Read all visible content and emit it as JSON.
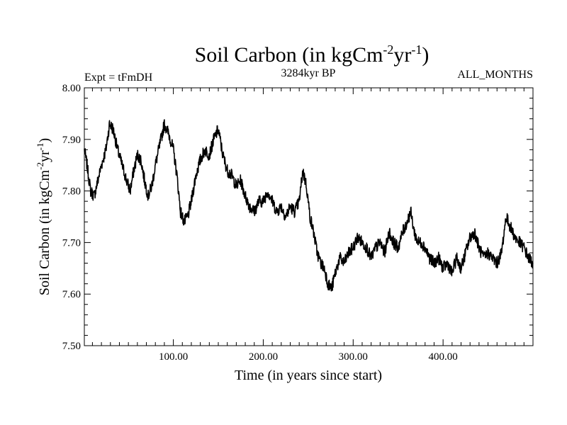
{
  "chart_data": {
    "type": "line",
    "title": "Soil Carbon",
    "title_units": "(in kgCm",
    "title_sup1": "-2",
    "title_mid": "yr",
    "title_sup2": "-1",
    "title_close": ")",
    "subtitle_left": "Expt = tFmDH",
    "subtitle_center": "3284kyr BP",
    "subtitle_right": "ALL_MONTHS",
    "xlabel": "Time (in years since start)",
    "ylabel": "Soil Carbon",
    "ylabel_units": "(in kgCm",
    "ylabel_sup1": "-2",
    "ylabel_mid": "yr",
    "ylabel_sup2": "-1",
    "ylabel_close": ")",
    "xlim": [
      1,
      500
    ],
    "ylim": [
      7.5,
      8.0
    ],
    "xticks": [
      100,
      200,
      300,
      400
    ],
    "xtick_labels": [
      "100.00",
      "200.00",
      "300.00",
      "400.00"
    ],
    "yticks": [
      7.5,
      7.6,
      7.7,
      7.8,
      7.9,
      8.0
    ],
    "ytick_labels": [
      "7.50",
      "7.60",
      "7.70",
      "7.80",
      "7.90",
      "8.00"
    ],
    "line_color": "#000000",
    "series": [
      {
        "name": "Soil Carbon",
        "noise_amplitude": 0.012,
        "x": [
          1,
          4,
          8,
          12,
          16,
          20,
          25,
          29,
          33,
          38,
          43,
          48,
          52,
          56,
          60,
          64,
          68,
          72,
          76,
          80,
          85,
          90,
          95,
          100,
          104,
          108,
          112,
          116,
          120,
          125,
          130,
          135,
          140,
          145,
          150,
          155,
          160,
          165,
          170,
          175,
          180,
          185,
          190,
          195,
          200,
          205,
          210,
          215,
          220,
          225,
          230,
          235,
          240,
          244,
          248,
          252,
          256,
          260,
          264,
          268,
          272,
          276,
          280,
          285,
          290,
          295,
          300,
          305,
          310,
          315,
          320,
          325,
          330,
          335,
          340,
          345,
          350,
          355,
          360,
          364,
          368,
          372,
          376,
          380,
          385,
          390,
          395,
          400,
          405,
          410,
          415,
          420,
          425,
          430,
          435,
          440,
          445,
          450,
          455,
          460,
          465,
          470,
          475,
          480,
          485,
          490,
          495,
          500
        ],
        "y": [
          7.88,
          7.85,
          7.8,
          7.79,
          7.82,
          7.85,
          7.88,
          7.93,
          7.92,
          7.88,
          7.85,
          7.82,
          7.8,
          7.84,
          7.87,
          7.86,
          7.82,
          7.79,
          7.81,
          7.85,
          7.89,
          7.93,
          7.91,
          7.88,
          7.83,
          7.76,
          7.74,
          7.75,
          7.78,
          7.83,
          7.86,
          7.88,
          7.87,
          7.9,
          7.92,
          7.87,
          7.84,
          7.83,
          7.81,
          7.82,
          7.79,
          7.77,
          7.76,
          7.78,
          7.78,
          7.8,
          7.78,
          7.76,
          7.77,
          7.75,
          7.77,
          7.76,
          7.78,
          7.84,
          7.81,
          7.75,
          7.72,
          7.68,
          7.66,
          7.65,
          7.62,
          7.61,
          7.64,
          7.67,
          7.66,
          7.68,
          7.69,
          7.71,
          7.7,
          7.69,
          7.67,
          7.69,
          7.7,
          7.68,
          7.72,
          7.7,
          7.69,
          7.72,
          7.74,
          7.76,
          7.72,
          7.7,
          7.7,
          7.69,
          7.67,
          7.66,
          7.67,
          7.65,
          7.66,
          7.64,
          7.67,
          7.65,
          7.68,
          7.71,
          7.72,
          7.69,
          7.67,
          7.68,
          7.67,
          7.66,
          7.68,
          7.75,
          7.73,
          7.71,
          7.7,
          7.69,
          7.67,
          7.66
        ]
      }
    ]
  }
}
